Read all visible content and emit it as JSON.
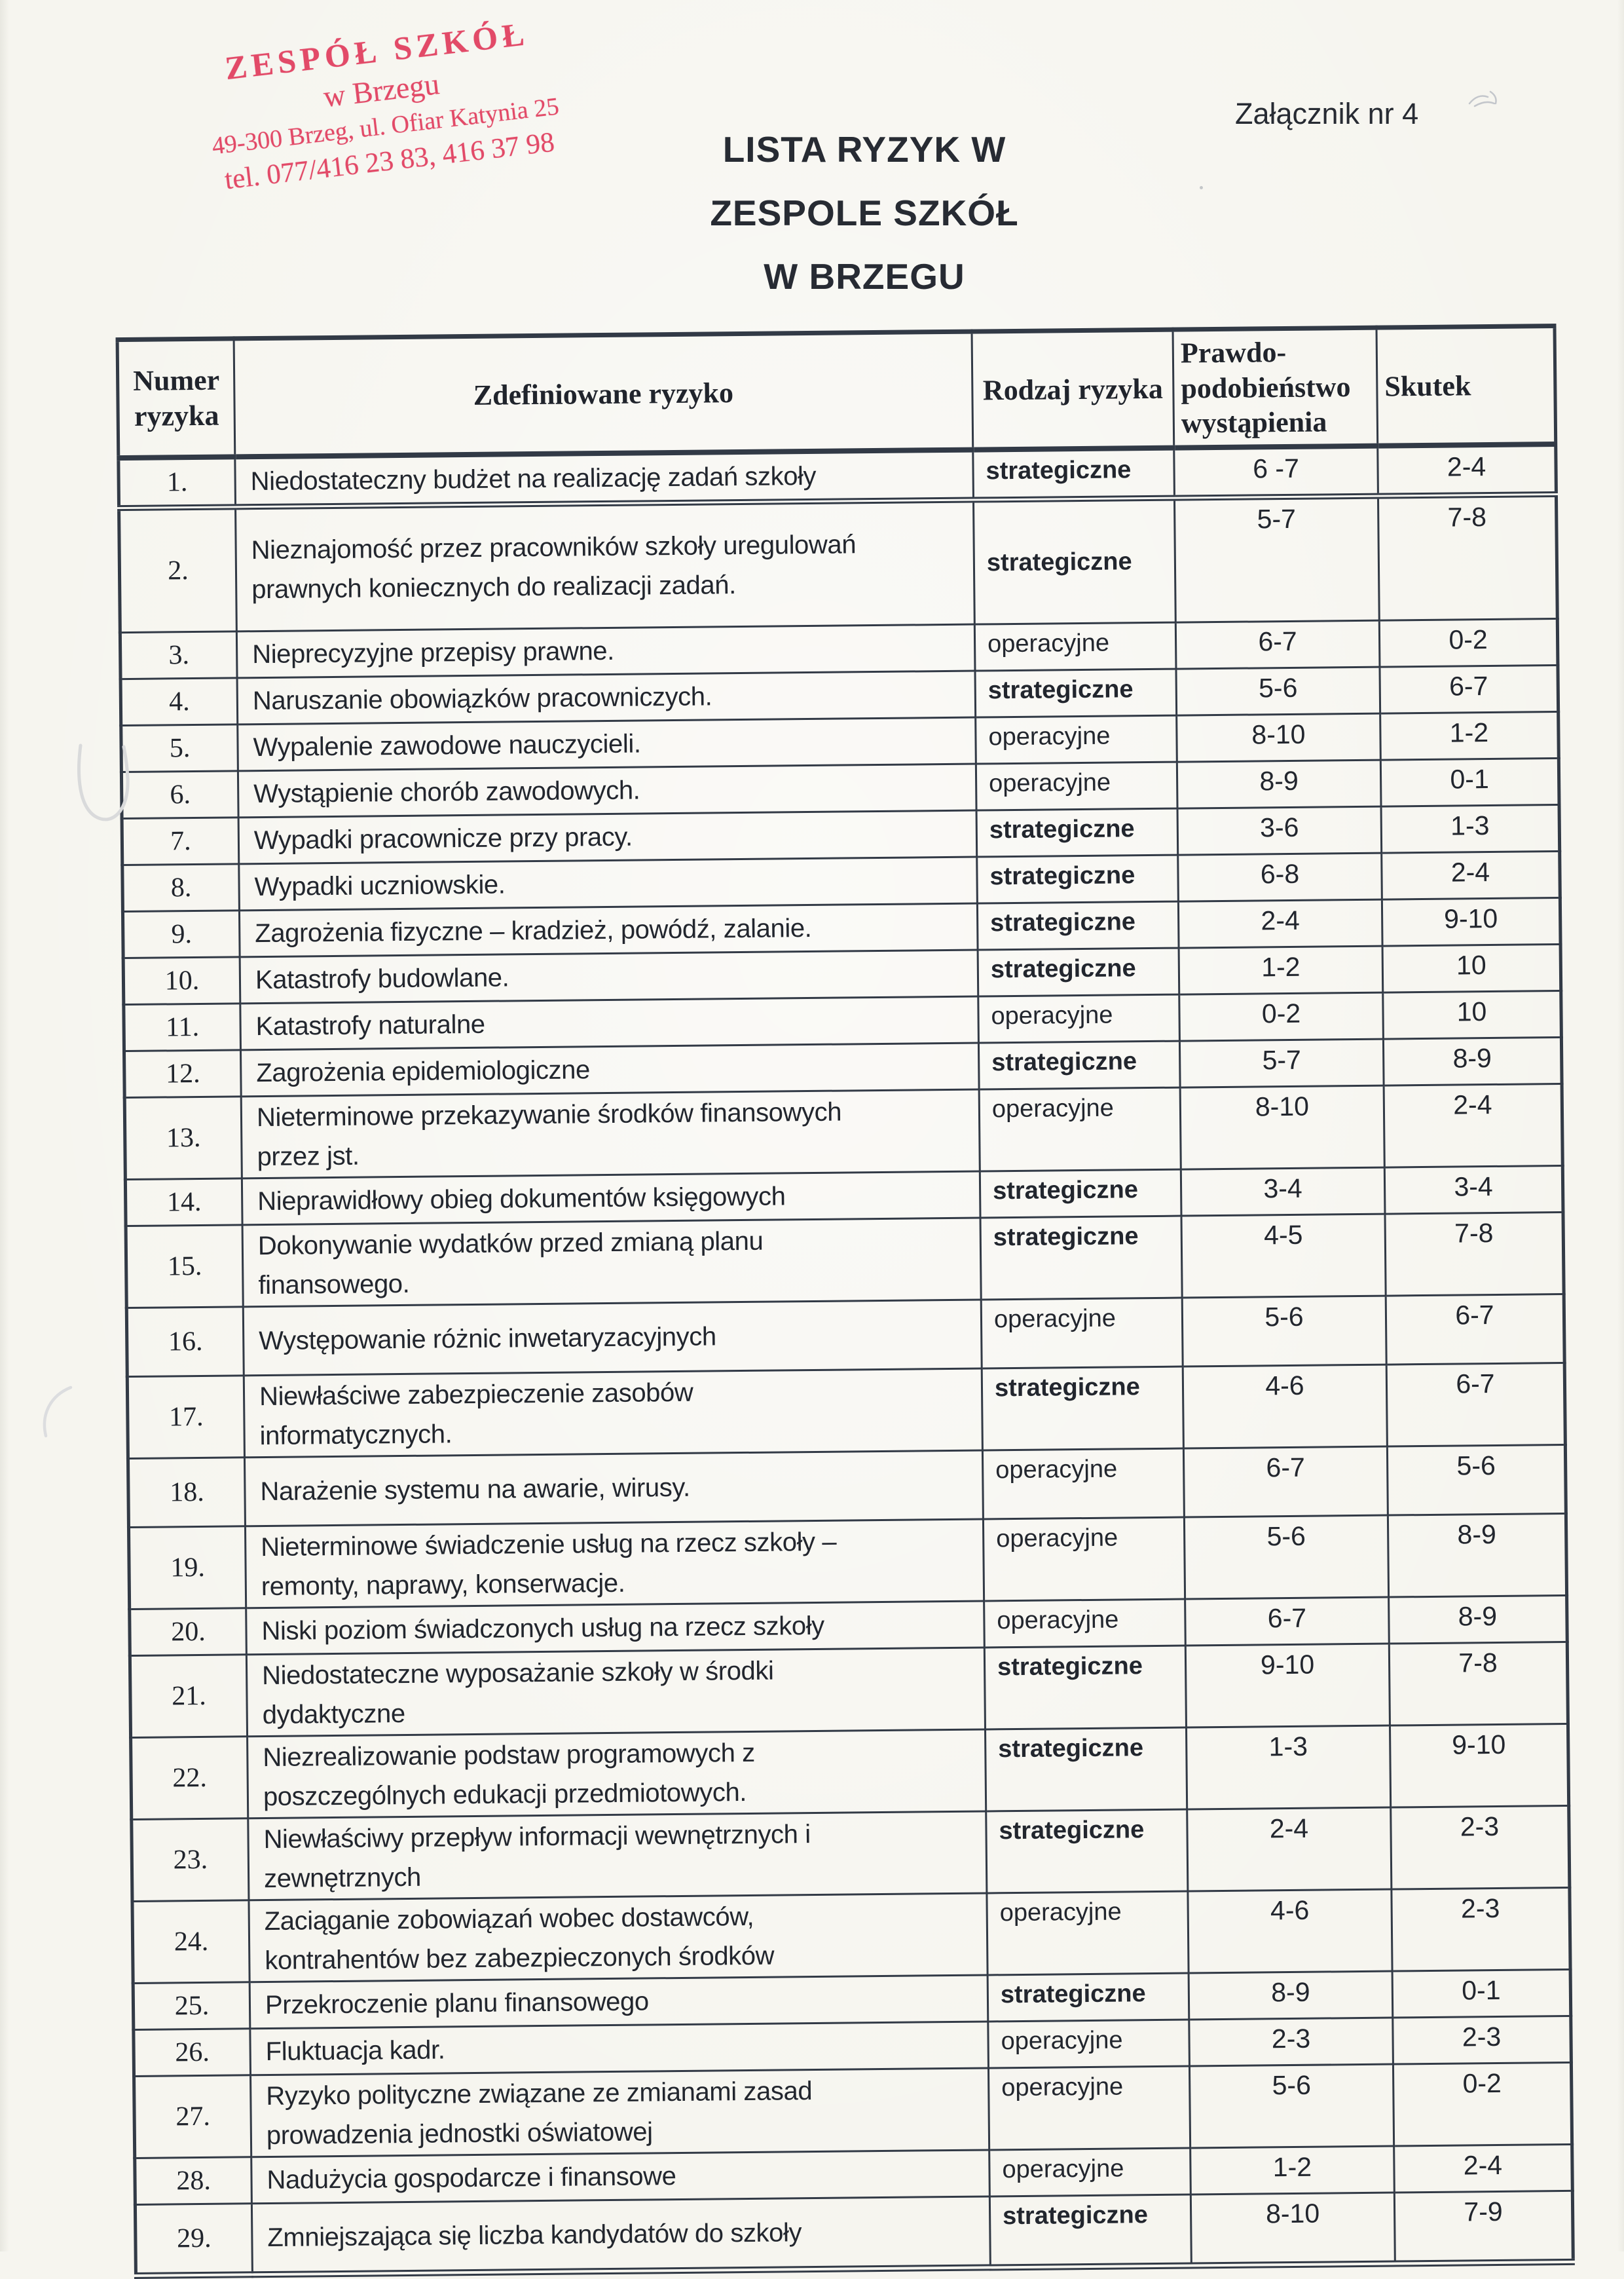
{
  "stamp": {
    "line1": "ZESPÓŁ SZKÓŁ",
    "line2": "w Brzegu",
    "line3": "49-300 Brzeg, ul. Ofiar Katynia 25",
    "line4": "tel. 077/416 23 83, 416 37 98",
    "color": "#e24a68"
  },
  "attachment_label": "Załącznik nr 4",
  "title": {
    "lines": [
      "LISTA  RYZYK W",
      "ZESPOLE SZKÓŁ",
      "W BRZEGU"
    ]
  },
  "table": {
    "headers": {
      "number": "Numer\nryzyka",
      "risk": "Zdefiniowane ryzyko",
      "type": "Rodzaj ryzyka",
      "probability": "Prawdo-\npodobieństwo\nwystąpienia",
      "impact": "Skutek"
    },
    "rows": [
      {
        "n": "1.",
        "risk": "Niedostateczny budżet na realizację zadań szkoły",
        "type": "strategiczne",
        "prob": "6 -7",
        "impact": "2-4",
        "h": "s"
      },
      {
        "n": "2.",
        "risk": "Nieznajomość przez pracowników szkoły uregulowań\nprawnych koniecznych do realizacji zadań.",
        "type": "strategiczne",
        "prob": "5-7",
        "impact": "7-8",
        "h": "x",
        "type_middle": true
      },
      {
        "n": "3.",
        "risk": "Nieprecyzyjne przepisy prawne.",
        "type": "operacyjne",
        "prob": "6-7",
        "impact": "0-2",
        "h": "s"
      },
      {
        "n": "4.",
        "risk": "Naruszanie obowiązków pracowniczych.",
        "type": "strategiczne",
        "prob": "5-6",
        "impact": "6-7",
        "h": "s"
      },
      {
        "n": "5.",
        "risk": "Wypalenie zawodowe nauczycieli.",
        "type": "operacyjne",
        "prob": "8-10",
        "impact": "1-2",
        "h": "s"
      },
      {
        "n": "6.",
        "risk": "Wystąpienie chorób zawodowych.",
        "type": "operacyjne",
        "prob": "8-9",
        "impact": "0-1",
        "h": "s"
      },
      {
        "n": "7.",
        "risk": "Wypadki pracownicze przy pracy.",
        "type": "strategiczne",
        "prob": "3-6",
        "impact": "1-3",
        "h": "s"
      },
      {
        "n": "8.",
        "risk": "Wypadki uczniowskie.",
        "type": "strategiczne",
        "prob": "6-8",
        "impact": "2-4",
        "h": "s"
      },
      {
        "n": "9.",
        "risk": "Zagrożenia fizyczne – kradzież, powódź, zalanie.",
        "type": "strategiczne",
        "prob": "2-4",
        "impact": "9-10",
        "h": "s"
      },
      {
        "n": "10.",
        "risk": "Katastrofy budowlane.",
        "type": "strategiczne",
        "prob": "1-2",
        "impact": "10",
        "h": "s"
      },
      {
        "n": "11.",
        "risk": "Katastrofy naturalne",
        "type": "operacyjne",
        "prob": "0-2",
        "impact": "10",
        "h": "s"
      },
      {
        "n": "12.",
        "risk": "Zagrożenia epidemiologiczne",
        "type": "strategiczne",
        "prob": "5-7",
        "impact": "8-9",
        "h": "s"
      },
      {
        "n": "13.",
        "risk": "Nieterminowe przekazywanie środków finansowych\nprzez jst.",
        "type": "operacyjne",
        "prob": "8-10",
        "impact": "2-4",
        "h": "d"
      },
      {
        "n": "14.",
        "risk": "Nieprawidłowy obieg dokumentów księgowych",
        "type": "strategiczne",
        "prob": "3-4",
        "impact": "3-4",
        "h": "s"
      },
      {
        "n": "15.",
        "risk": "Dokonywanie wydatków przed zmianą planu\nfinansowego.",
        "type": "strategiczne",
        "prob": "4-5",
        "impact": "7-8",
        "h": "d"
      },
      {
        "n": "16.",
        "risk": "Występowanie różnic inwetaryzacyjnych",
        "type": "operacyjne",
        "prob": "5-6",
        "impact": "6-7",
        "h": "t"
      },
      {
        "n": "17.",
        "risk": "Niewłaściwe zabezpieczenie zasobów\ninformatycznych.",
        "type": "strategiczne",
        "prob": "4-6",
        "impact": "6-7",
        "h": "d"
      },
      {
        "n": "18.",
        "risk": "Narażenie systemu na awarie, wirusy.",
        "type": "operacyjne",
        "prob": "6-7",
        "impact": "5-6",
        "h": "t"
      },
      {
        "n": "19.",
        "risk": "Nieterminowe świadczenie usług na rzecz szkoły –\nremonty, naprawy, konserwacje.",
        "type": "operacyjne",
        "prob": "5-6",
        "impact": "8-9",
        "h": "d"
      },
      {
        "n": "20.",
        "risk": "Niski poziom świadczonych usług na rzecz szkoły",
        "type": "operacyjne",
        "prob": "6-7",
        "impact": "8-9",
        "h": "s"
      },
      {
        "n": "21.",
        "risk": "Niedostateczne wyposażanie szkoły w środki\ndydaktyczne",
        "type": "strategiczne",
        "prob": "9-10",
        "impact": "7-8",
        "h": "d"
      },
      {
        "n": "22.",
        "risk": "Niezrealizowanie podstaw programowych z\nposzczególnych edukacji przedmiotowych.",
        "type": "strategiczne",
        "prob": "1-3",
        "impact": "9-10",
        "h": "d"
      },
      {
        "n": "23.",
        "risk": "Niewłaściwy przepływ informacji wewnętrznych i\nzewnętrznych",
        "type": "strategiczne",
        "prob": "2-4",
        "impact": "2-3",
        "h": "d"
      },
      {
        "n": "24.",
        "risk": "Zaciąganie zobowiązań  wobec dostawców,\nkontrahentów bez zabezpieczonych środków",
        "type": "operacyjne",
        "prob": "4-6",
        "impact": "2-3",
        "h": "d"
      },
      {
        "n": "25.",
        "risk": "Przekroczenie planu finansowego",
        "type": "strategiczne",
        "prob": "8-9",
        "impact": "0-1",
        "h": "s"
      },
      {
        "n": "26.",
        "risk": "Fluktuacja kadr.",
        "type": "operacyjne",
        "prob": "2-3",
        "impact": "2-3",
        "h": "s"
      },
      {
        "n": "27.",
        "risk": "Ryzyko polityczne związane ze zmianami zasad\nprowadzenia jednostki oświatowej",
        "type": "operacyjne",
        "prob": "5-6",
        "impact": "0-2",
        "h": "d"
      },
      {
        "n": "28.",
        "risk": "Nadużycia gospodarcze i finansowe",
        "type": "operacyjne",
        "prob": "1-2",
        "impact": "2-4",
        "h": "s"
      },
      {
        "n": "29.",
        "risk": "Zmniejszająca się liczba kandydatów do szkoły",
        "type": "strategiczne",
        "prob": "8-10",
        "impact": "7-9",
        "h": "t"
      }
    ],
    "bold_type_value": "strategiczne"
  }
}
